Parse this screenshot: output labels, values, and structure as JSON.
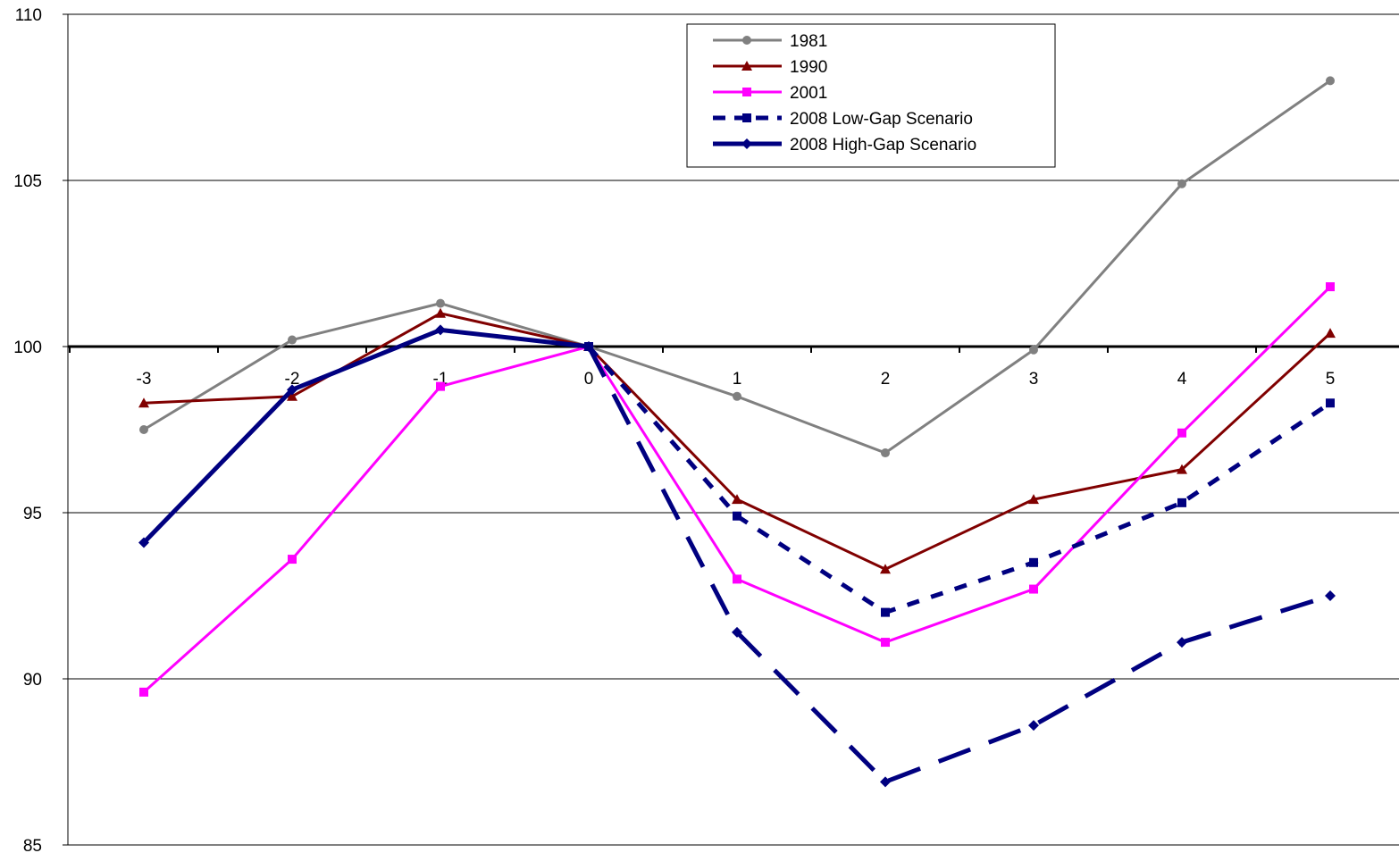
{
  "chart_data": {
    "type": "line",
    "x": [
      -3,
      -2,
      -1,
      0,
      1,
      2,
      3,
      4,
      5
    ],
    "xticks": [
      "-3",
      "-2",
      "-1",
      "0",
      "1",
      "2",
      "3",
      "4",
      "5"
    ],
    "ylim": [
      85,
      110
    ],
    "yticks": [
      "85",
      "90",
      "95",
      "100",
      "105",
      "110"
    ],
    "reference_line": 100,
    "grid": "horizontal",
    "legend_position": "top-center",
    "series": [
      {
        "name": "1981",
        "values": [
          97.5,
          100.2,
          101.3,
          100.0,
          98.5,
          96.8,
          99.9,
          104.9,
          108.0
        ],
        "color": "#808080",
        "dash": "solid",
        "marker": "circle",
        "width": 3
      },
      {
        "name": "1990",
        "values": [
          98.3,
          98.5,
          101.0,
          100.0,
          95.4,
          93.3,
          95.4,
          96.3,
          100.4
        ],
        "color": "#800000",
        "dash": "solid",
        "marker": "triangle",
        "width": 3
      },
      {
        "name": "2001",
        "values": [
          89.6,
          93.6,
          98.8,
          100.0,
          93.0,
          91.1,
          92.7,
          97.4,
          101.8
        ],
        "color": "#ff00ff",
        "dash": "solid",
        "marker": "square",
        "width": 3
      },
      {
        "name": "2008 Low-Gap Scenario",
        "values": [
          null,
          null,
          null,
          100.0,
          94.9,
          92.0,
          93.5,
          95.3,
          98.3
        ],
        "color": "#000080",
        "dash": "short",
        "marker": "square",
        "width": 5
      },
      {
        "name": "2008 High-Gap Scenario",
        "values": [
          94.1,
          98.7,
          100.5,
          100.0,
          91.4,
          86.9,
          88.6,
          91.1,
          92.5
        ],
        "color": "#000080",
        "dash": "long-after-0",
        "marker": "diamond",
        "width": 5
      }
    ]
  }
}
